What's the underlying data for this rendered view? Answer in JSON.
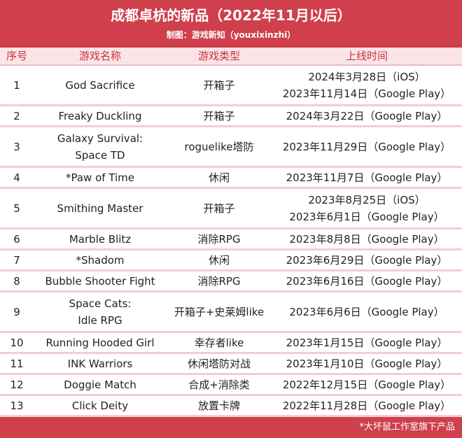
{
  "header": {
    "title": "成都卓杭的新品（2022年11月以后）",
    "subtitle": "制图：游戏新知（youxixinzhi）"
  },
  "table": {
    "columns": [
      "序号",
      "游戏名称",
      "游戏类型",
      "上线时间"
    ],
    "rows": [
      {
        "no": "1",
        "name": [
          "God Sacrifice"
        ],
        "type": [
          "开箱子"
        ],
        "release": [
          "2024年3月28日（iOS）",
          "2023年11月14日（Google Play）"
        ]
      },
      {
        "no": "2",
        "name": [
          "Freaky Duckling"
        ],
        "type": [
          "开箱子"
        ],
        "release": [
          "2024年3月22日（Google Play）"
        ]
      },
      {
        "no": "3",
        "name": [
          "Galaxy Survival:",
          "Space TD"
        ],
        "type": [
          "roguelike塔防"
        ],
        "release": [
          "2023年11月29日（Google Play）"
        ]
      },
      {
        "no": "4",
        "name": [
          "*Paw of Time"
        ],
        "type": [
          "休闲"
        ],
        "release": [
          "2023年11月7日（Google Play）"
        ]
      },
      {
        "no": "5",
        "name": [
          "Smithing Master"
        ],
        "type": [
          "开箱子"
        ],
        "release": [
          "2023年8月25日（iOS）",
          "2023年6月1日（Google Play）"
        ]
      },
      {
        "no": "6",
        "name": [
          "Marble Blitz"
        ],
        "type": [
          "消除RPG"
        ],
        "release": [
          "2023年8月8日（Google Play）"
        ]
      },
      {
        "no": "7",
        "name": [
          "*Shadom"
        ],
        "type": [
          "休闲"
        ],
        "release": [
          "2023年6月29日（Google Play）"
        ]
      },
      {
        "no": "8",
        "name": [
          "Bubble Shooter Fight"
        ],
        "type": [
          "消除RPG"
        ],
        "release": [
          "2023年6月16日（Google Play）"
        ]
      },
      {
        "no": "9",
        "name": [
          "Space Cats:",
          "Idle RPG"
        ],
        "type": [
          "开箱子+史莱姆like"
        ],
        "release": [
          "2023年6月6日（Google Play）"
        ]
      },
      {
        "no": "10",
        "name": [
          "Running Hooded Girl"
        ],
        "type": [
          "幸存者like"
        ],
        "release": [
          "2023年1月15日（Google Play）"
        ]
      },
      {
        "no": "11",
        "name": [
          "INK Warriors"
        ],
        "type": [
          "休闲塔防对战"
        ],
        "release": [
          "2023年1月10日（Google Play）"
        ]
      },
      {
        "no": "12",
        "name": [
          "Doggie Match"
        ],
        "type": [
          "合成+消除类"
        ],
        "release": [
          "2022年12月15日（Google Play）"
        ]
      },
      {
        "no": "13",
        "name": [
          "Click Deity"
        ],
        "type": [
          "放置卡牌"
        ],
        "release": [
          "2022年11月28日（Google Play）"
        ]
      }
    ]
  },
  "footer": {
    "note": "*大坏鼠工作室旗下产品"
  }
}
